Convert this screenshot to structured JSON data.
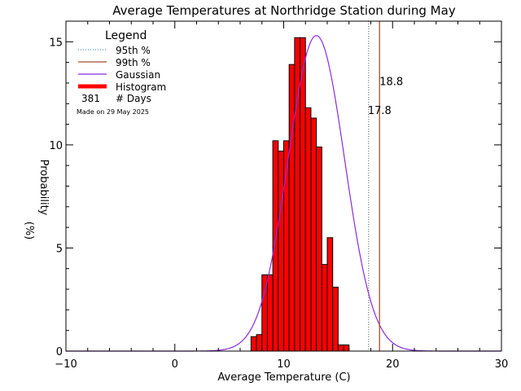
{
  "chart_data": {
    "type": "bar",
    "title": "Average Temperatures at Northridge Station during May",
    "xlabel": "Average Temperature (C)",
    "ylabel_top": "Probability",
    "ylabel_bottom": "(%)",
    "xlim": [
      -10,
      30
    ],
    "ylim": [
      0,
      16
    ],
    "xticks": [
      -10,
      0,
      10,
      20,
      30
    ],
    "yticks": [
      0,
      5,
      10,
      15
    ],
    "histogram": {
      "bin_width": 0.5,
      "bins": [
        {
          "start": 7.0,
          "value": 0.7
        },
        {
          "start": 7.5,
          "value": 0.8
        },
        {
          "start": 8.0,
          "value": 3.7
        },
        {
          "start": 8.5,
          "value": 3.7
        },
        {
          "start": 9.0,
          "value": 10.2
        },
        {
          "start": 9.5,
          "value": 9.7
        },
        {
          "start": 10.0,
          "value": 10.2
        },
        {
          "start": 10.5,
          "value": 13.9
        },
        {
          "start": 11.0,
          "value": 15.2
        },
        {
          "start": 11.5,
          "value": 15.2
        },
        {
          "start": 12.0,
          "value": 11.8
        },
        {
          "start": 12.5,
          "value": 11.3
        },
        {
          "start": 13.0,
          "value": 9.9
        },
        {
          "start": 13.5,
          "value": 4.2
        },
        {
          "start": 14.0,
          "value": 5.5
        },
        {
          "start": 14.5,
          "value": 3.1
        },
        {
          "start": 15.0,
          "value": 0.3
        },
        {
          "start": 15.5,
          "value": 0.3
        }
      ]
    },
    "gaussian": {
      "mean": 13.0,
      "sigma": 2.6,
      "peak": 15.3
    },
    "percentile_95": {
      "value": 17.8,
      "label": "17.8",
      "color": "#1f77d4"
    },
    "percentile_99": {
      "value": 18.8,
      "label": "18.8",
      "color": "#a0522d"
    },
    "legend": {
      "title": "Legend",
      "items": [
        {
          "label": "95th %",
          "style": "dotted",
          "color": "#1f77d4"
        },
        {
          "label": "99th %",
          "style": "solid",
          "color": "#a0522d"
        },
        {
          "label": "Gaussian",
          "style": "solid",
          "color": "#8a2be2"
        },
        {
          "label": "Histogram",
          "style": "thick",
          "color": "#ff0000"
        }
      ],
      "count": "381",
      "count_label": "# Days",
      "made_on": "Made on 29 May 2025"
    },
    "colors": {
      "histogram_fill": "#ff0000",
      "histogram_edge": "#000000",
      "gaussian": "#8a2be2",
      "made_on": "#c8c8c8"
    }
  }
}
